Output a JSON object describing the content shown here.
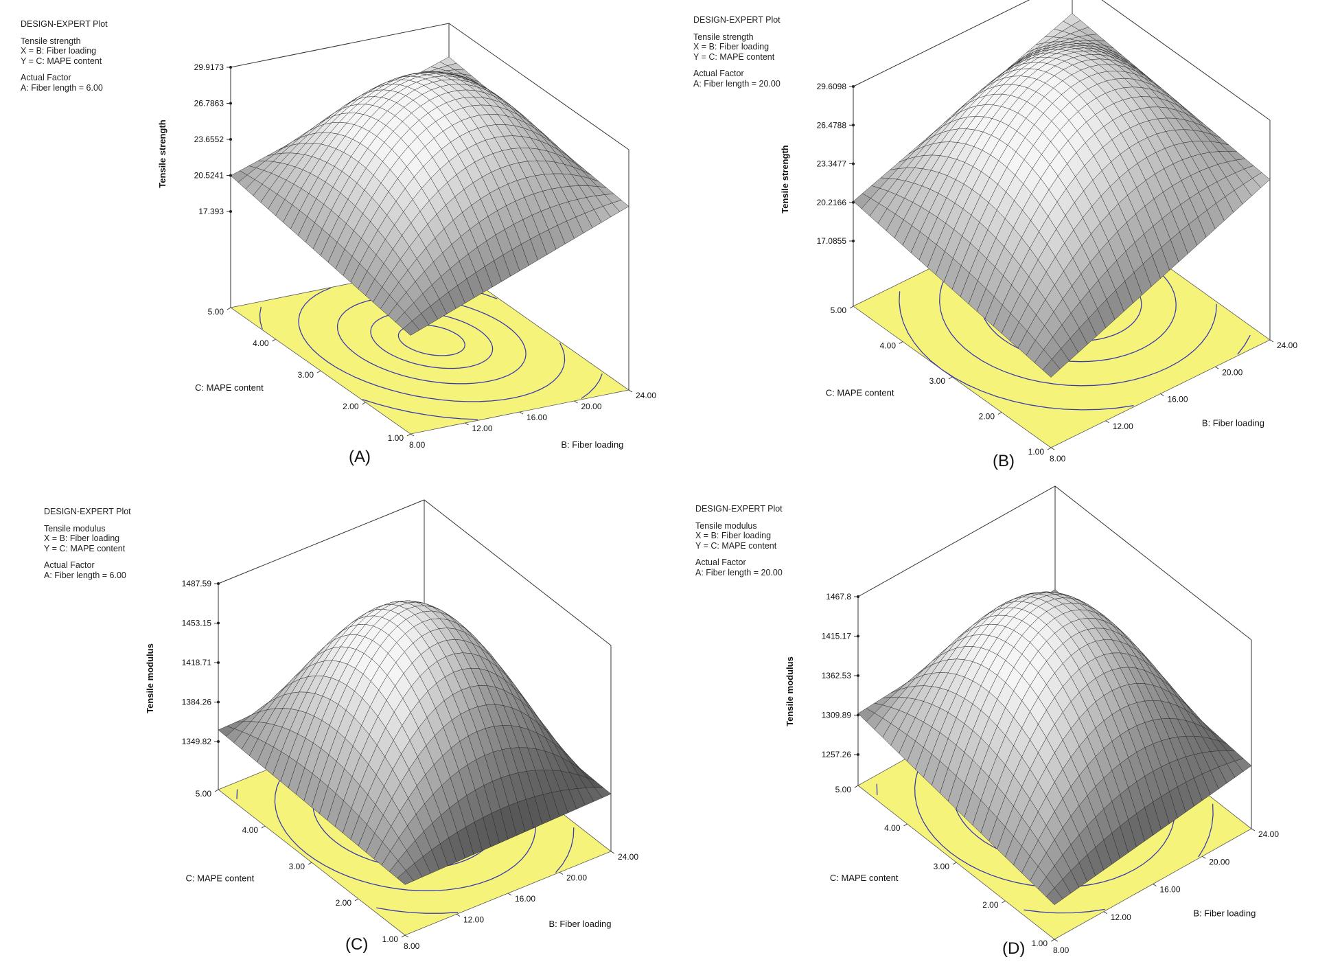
{
  "panels": [
    {
      "id": "A",
      "label": "(A)",
      "header": {
        "title": "DESIGN-EXPERT Plot",
        "response": "Tensile strength",
        "x_factor": "X = B: Fiber loading",
        "y_factor": "Y = C: MAPE content",
        "actual_factor_title": "Actual Factor",
        "actual_factor": "A: Fiber length = 6.00"
      }
    },
    {
      "id": "B",
      "label": "(B)",
      "header": {
        "title": "DESIGN-EXPERT Plot",
        "response": "Tensile strength",
        "x_factor": "X = B: Fiber loading",
        "y_factor": "Y = C: MAPE content",
        "actual_factor_title": "Actual Factor",
        "actual_factor": "A: Fiber length = 20.00"
      }
    },
    {
      "id": "C",
      "label": "(C)",
      "header": {
        "title": "DESIGN-EXPERT Plot",
        "response": "Tensile modulus",
        "x_factor": "X = B: Fiber loading",
        "y_factor": "Y = C: MAPE content",
        "actual_factor_title": "Actual Factor",
        "actual_factor": "A: Fiber length = 6.00"
      }
    },
    {
      "id": "D",
      "label": "(D)",
      "header": {
        "title": "DESIGN-EXPERT Plot",
        "response": "Tensile modulus",
        "x_factor": "X = B: Fiber loading",
        "y_factor": "Y = C: MAPE content",
        "actual_factor_title": "Actual Factor",
        "actual_factor": "A: Fiber length = 20.00"
      }
    }
  ],
  "colors": {
    "contour_plane": "#f5f37a",
    "contour_line": "#3b3bb0",
    "surface_light": "#f2f2f2",
    "surface_dark": "#555555",
    "mesh_line": "#2a2a2a"
  },
  "chart_data": [
    {
      "type": "surface",
      "panel": "A",
      "zlabel": "Tensile strength",
      "xlabel": "B: Fiber loading",
      "ylabel": "C: MAPE content",
      "x_ticks": [
        "8.00",
        "12.00",
        "16.00",
        "20.00",
        "24.00"
      ],
      "y_ticks": [
        "1.00",
        "2.00",
        "3.00",
        "4.00",
        "5.00"
      ],
      "z_ticks": [
        "17.393",
        "20.5241",
        "23.6552",
        "26.7863",
        "29.9173"
      ],
      "xlim": [
        8,
        24
      ],
      "ylim": [
        1,
        5
      ],
      "zlim": [
        17.393,
        29.9173
      ],
      "corners": {
        "x8_y1": 17.6,
        "x24_y1": 25.0,
        "x8_y5": 20.5,
        "x24_y5": 27.0
      },
      "peak": 29.9
    },
    {
      "type": "surface",
      "panel": "B",
      "zlabel": "Tensile strength",
      "xlabel": "B: Fiber loading",
      "ylabel": "C: MAPE content",
      "x_ticks": [
        "8.00",
        "12.00",
        "16.00",
        "20.00",
        "24.00"
      ],
      "y_ticks": [
        "1.00",
        "2.00",
        "3.00",
        "4.00",
        "5.00"
      ],
      "z_ticks": [
        "17.0855",
        "20.2166",
        "23.3477",
        "26.4788",
        "29.6098"
      ],
      "xlim": [
        8,
        24
      ],
      "ylim": [
        1,
        5
      ],
      "zlim": [
        17.0855,
        29.6098
      ],
      "corners": {
        "x8_y1": 17.5,
        "x24_y1": 24.8,
        "x8_y5": 20.3,
        "x24_y5": 26.8
      },
      "peak": 29.6
    },
    {
      "type": "surface",
      "panel": "C",
      "zlabel": "Tensile modulus",
      "xlabel": "B: Fiber loading",
      "ylabel": "C: MAPE content",
      "x_ticks": [
        "8.00",
        "12.00",
        "16.00",
        "20.00",
        "24.00"
      ],
      "y_ticks": [
        "1.00",
        "2.00",
        "3.00",
        "4.00",
        "5.00"
      ],
      "z_ticks": [
        "1349.82",
        "1384.26",
        "1418.71",
        "1453.15",
        "1487.59"
      ],
      "xlim": [
        8,
        24
      ],
      "ylim": [
        1,
        5
      ],
      "zlim": [
        1349.82,
        1487.59
      ],
      "corners": {
        "x8_y1": 1352,
        "x24_y1": 1358,
        "x8_y5": 1360,
        "x24_y5": 1366
      },
      "peak": 1487.6
    },
    {
      "type": "surface",
      "panel": "D",
      "zlabel": "Tensile modulus",
      "xlabel": "B: Fiber loading",
      "ylabel": "C: MAPE content",
      "x_ticks": [
        "8.00",
        "12.00",
        "16.00",
        "20.00",
        "24.00"
      ],
      "y_ticks": [
        "1.00",
        "2.00",
        "3.00",
        "4.00",
        "5.00"
      ],
      "z_ticks": [
        "1257.26",
        "1309.89",
        "1362.53",
        "1415.17",
        "1467.8"
      ],
      "xlim": [
        8,
        24
      ],
      "ylim": [
        1,
        5
      ],
      "zlim": [
        1257.26,
        1467.8
      ],
      "corners": {
        "x8_y1": 1262,
        "x24_y1": 1300,
        "x8_y5": 1312,
        "x24_y5": 1330
      },
      "peak": 1467.8
    }
  ]
}
